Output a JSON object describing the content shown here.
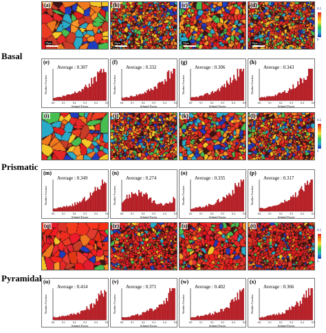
{
  "row_labels": [
    "Basal",
    "Prismatic",
    "Pyramidal"
  ],
  "scale_bar_text": "50μm",
  "legend": {
    "max": "0.5",
    "min": "0"
  },
  "hist_axes": {
    "xlabel": "Schmid Factor",
    "ylabel": "Number Fraction",
    "xticks": [
      "0.0",
      "0.1",
      "0.2",
      "0.3",
      "0.4",
      "0.5"
    ]
  },
  "maps": [
    {
      "label": "(a)"
    },
    {
      "label": "(b)"
    },
    {
      "label": "(c)"
    },
    {
      "label": "(d)"
    },
    {
      "label": "(i)"
    },
    {
      "label": "(j)"
    },
    {
      "label": "(k)"
    },
    {
      "label": "(l)"
    },
    {
      "label": "(q)"
    },
    {
      "label": "(r)"
    },
    {
      "label": "(s)"
    },
    {
      "label": "(t)"
    }
  ],
  "hists": [
    {
      "label": "(e)",
      "average": "Average : 0.307"
    },
    {
      "label": "(f)",
      "average": "Average : 0.332"
    },
    {
      "label": "(g)",
      "average": "Average : 0.306"
    },
    {
      "label": "(h)",
      "average": "Average : 0.343"
    },
    {
      "label": "(m)",
      "average": "Average : 0.349"
    },
    {
      "label": "(n)",
      "average": "Average : 0.274"
    },
    {
      "label": "(o)",
      "average": "Average : 0.335"
    },
    {
      "label": "(p)",
      "average": "Average : 0.317"
    },
    {
      "label": "(u)",
      "average": "Average : 0.414"
    },
    {
      "label": "(v)",
      "average": "Average : 0.371"
    },
    {
      "label": "(w)",
      "average": "Average : 0.402"
    },
    {
      "label": "(x)",
      "average": "Average : 0.366"
    }
  ],
  "colors": {
    "bar": "#c0141c",
    "bar_edge": "#7a0a0f"
  }
}
